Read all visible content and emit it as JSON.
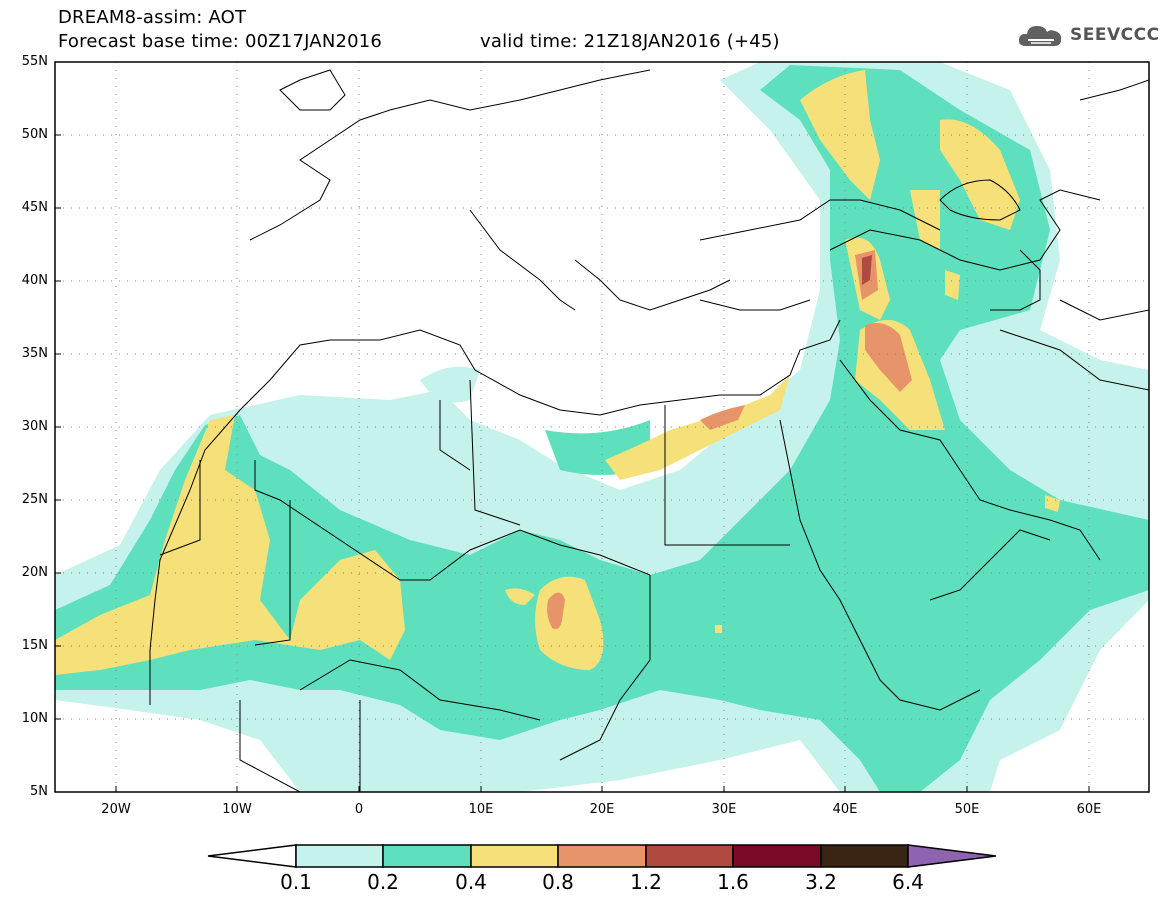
{
  "header": {
    "title_line1": "DREAM8-assim: AOT",
    "title_line2": "Forecast base time: 00Z17JAN2016",
    "valid_time": "valid time: 21Z18JAN2016 (+45)"
  },
  "logo": {
    "text": "SEEVCCC",
    "icon": "cloud-icon"
  },
  "map": {
    "lat_labels": [
      "55N",
      "50N",
      "45N",
      "40N",
      "35N",
      "30N",
      "25N",
      "20N",
      "15N",
      "10N",
      "5N"
    ],
    "lon_labels": [
      "20W",
      "10W",
      "0",
      "10E",
      "20E",
      "30E",
      "40E",
      "50E",
      "60E"
    ],
    "lon_range": [
      -25,
      65
    ],
    "lat_range": [
      5,
      55
    ],
    "grid": "dotted"
  },
  "colorbar": {
    "levels": [
      "0.1",
      "0.2",
      "0.4",
      "0.8",
      "1.2",
      "1.6",
      "3.2",
      "6.4"
    ],
    "colors": [
      "#c5f2ea",
      "#5ee0bd",
      "#f5e07a",
      "#e8946a",
      "#b04a40",
      "#7a0a28",
      "#3a2414",
      "#8e64b0"
    ],
    "lower_extend_color": "#ffffff"
  }
}
